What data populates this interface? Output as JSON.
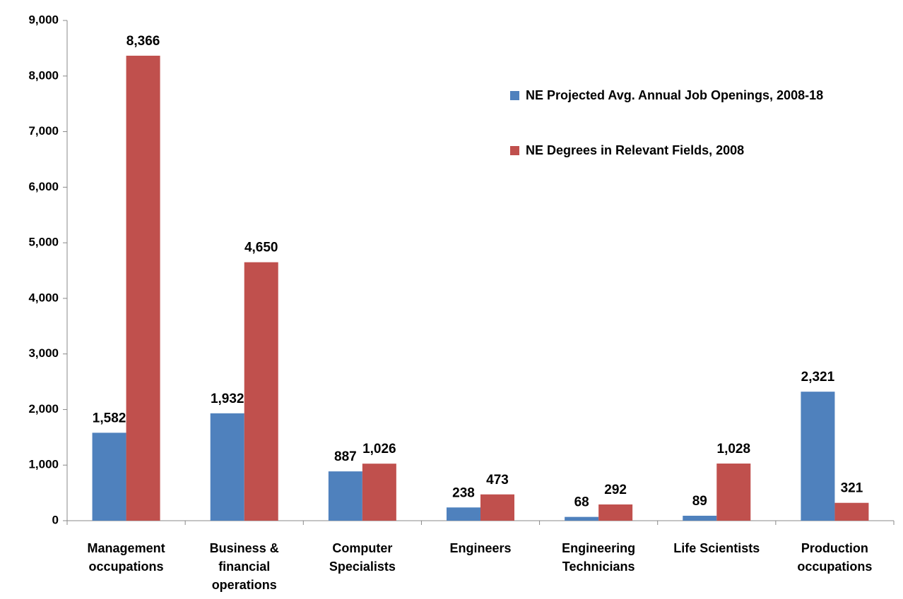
{
  "chart_data": {
    "type": "bar",
    "categories": [
      "Management occupations",
      "Business & financial operations",
      "Computer Specialists",
      "Engineers",
      "Engineering Technicians",
      "Life Scientists",
      "Production occupations"
    ],
    "series": [
      {
        "name": "NE Projected Avg. Annual Job Openings, 2008-18",
        "color": "#4f81bd",
        "values": [
          1582,
          1932,
          887,
          238,
          68,
          89,
          2321
        ],
        "value_labels": [
          "1,582",
          "1,932",
          "887",
          "238",
          "68",
          "89",
          "2,321"
        ]
      },
      {
        "name": "NE Degrees in Relevant Fields, 2008",
        "color": "#c0504d",
        "values": [
          8366,
          4650,
          1026,
          473,
          292,
          1028,
          321
        ],
        "value_labels": [
          "8,366",
          "4,650",
          "1,026",
          "473",
          "292",
          "1,028",
          "321"
        ]
      }
    ],
    "ylim": [
      0,
      9000
    ],
    "yticks": [
      0,
      {
        "value": 1000,
        "label": "1,000"
      },
      {
        "value": 2000,
        "label": "2,000"
      },
      {
        "value": 3000,
        "label": "3,000"
      },
      {
        "value": 4000,
        "label": "4,000"
      },
      {
        "value": 5000,
        "label": "5,000"
      },
      {
        "value": 6000,
        "label": "6,000"
      },
      {
        "value": 7000,
        "label": "7,000"
      },
      {
        "value": 8000,
        "label": "8,000"
      },
      {
        "value": 9000,
        "label": "9,000"
      }
    ],
    "legend": "upper right"
  }
}
